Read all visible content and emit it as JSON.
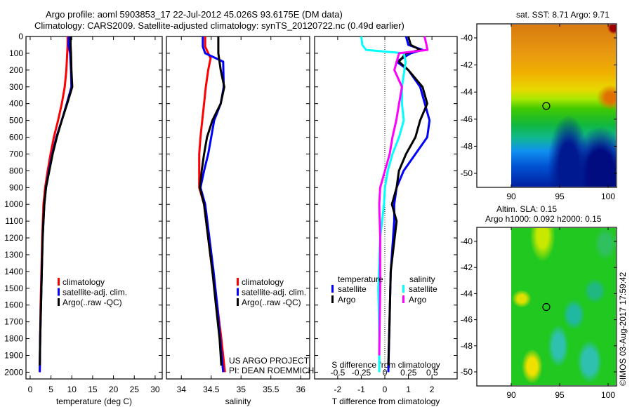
{
  "header": {
    "title_line1": "Argo profile: aoml 5903853_17 22-Jul-2012 45.026S 93.6175E (DM data)",
    "title_line2": "Climatology: CARS2009. Satellite-adjusted climatology: synTS_20120722.nc (0.49d earlier)"
  },
  "annotation": {
    "line1": "US ARGO PROJECT",
    "line2": "PI: DEAN ROEMMICH"
  },
  "copyright": "©IMOS 03-Aug-2017 17:59:42",
  "colors": {
    "climatology": "#ff0000",
    "satellite": "#0000ff",
    "argo": "#000000",
    "sal_satellite": "#00ffff",
    "sal_argo": "#ff00ff"
  },
  "chart_data": [
    {
      "type": "line",
      "title": "",
      "xlabel": "temperature (deg C)",
      "ylabel": "",
      "xlim": [
        -1,
        31.7
      ],
      "ylim": [
        2040,
        0
      ],
      "xticks": [
        "0",
        "5",
        "10",
        "15",
        "20",
        "25",
        "30"
      ],
      "yticks": [
        "0",
        "100",
        "200",
        "300",
        "400",
        "500",
        "600",
        "700",
        "800",
        "900",
        "1000",
        "1100",
        "1200",
        "1300",
        "1400",
        "1500",
        "1600",
        "1700",
        "1800",
        "1900",
        "2000"
      ],
      "legend": [
        "climatology",
        "satellite-adj. clim.",
        "Argo(..raw -QC)"
      ],
      "series": [
        {
          "name": "climatology",
          "color": "#ff0000",
          "depth": [
            0,
            50,
            100,
            200,
            300,
            400,
            500,
            600,
            700,
            800,
            900,
            1000,
            1200,
            1400,
            1600,
            1800,
            2000
          ],
          "values": [
            9.0,
            9.0,
            8.9,
            8.7,
            8.3,
            7.6,
            6.7,
            5.7,
            4.9,
            4.2,
            3.6,
            3.2,
            2.9,
            2.7,
            2.5,
            2.4,
            2.3
          ]
        },
        {
          "name": "satellite-adj. clim.",
          "color": "#0000ff",
          "depth": [
            0,
            50,
            100,
            200,
            300,
            400,
            500,
            600,
            700,
            800,
            900,
            1000,
            1200,
            1400,
            1600,
            1800,
            2000
          ],
          "values": [
            9.3,
            9.2,
            9.6,
            9.8,
            9.9,
            8.8,
            7.6,
            6.3,
            5.3,
            4.5,
            3.8,
            3.4,
            3.0,
            2.8,
            2.6,
            2.4,
            2.3
          ]
        },
        {
          "name": "Argo(..raw -QC)",
          "color": "#000000",
          "depth": [
            0,
            50,
            100,
            200,
            300,
            400,
            500,
            600,
            700,
            800,
            900,
            1000,
            1200,
            1400,
            1600,
            1800,
            1960
          ],
          "values": [
            9.7,
            9.7,
            9.8,
            9.9,
            10.1,
            8.9,
            7.6,
            6.4,
            5.4,
            4.6,
            3.8,
            3.4,
            3.0,
            2.8,
            2.6,
            2.4,
            2.3
          ]
        }
      ]
    },
    {
      "type": "line",
      "xlabel": "salinity",
      "xlim": [
        33.75,
        36.15
      ],
      "ylim": [
        2040,
        0
      ],
      "xticks": [
        "34",
        "34.5",
        "35",
        "35.5",
        "36"
      ],
      "legend": [
        "climatology",
        "satellite-adj. clim.",
        "Argo(..raw -QC)"
      ],
      "series": [
        {
          "name": "climatology",
          "color": "#ff0000",
          "depth": [
            0,
            60,
            130,
            200,
            300,
            400,
            500,
            600,
            700,
            800,
            900,
            1000,
            1200,
            1400,
            1600,
            1800,
            2000
          ],
          "values": [
            34.4,
            34.4,
            34.49,
            34.45,
            34.41,
            34.38,
            34.35,
            34.32,
            34.3,
            34.3,
            34.3,
            34.38,
            34.45,
            34.52,
            34.6,
            34.67,
            34.73
          ]
        },
        {
          "name": "satellite-adj. clim.",
          "color": "#0000ff",
          "depth": [
            0,
            60,
            100,
            150,
            300,
            400,
            500,
            600,
            700,
            800,
            900,
            1000,
            1200,
            1400,
            1600,
            1800,
            2000
          ],
          "values": [
            34.36,
            34.36,
            34.4,
            34.7,
            34.71,
            34.66,
            34.55,
            34.5,
            34.45,
            34.38,
            34.32,
            34.4,
            34.47,
            34.54,
            34.6,
            34.65,
            34.7
          ]
        },
        {
          "name": "Argo(..raw -QC)",
          "color": "#000000",
          "depth": [
            0,
            100,
            200,
            300,
            400,
            500,
            600,
            700,
            800,
            900,
            1000,
            1200,
            1400,
            1600,
            1800,
            1960
          ],
          "values": [
            34.62,
            34.62,
            34.66,
            34.72,
            34.66,
            34.52,
            34.43,
            34.38,
            34.34,
            34.31,
            34.38,
            34.45,
            34.52,
            34.58,
            34.64,
            34.67
          ]
        }
      ]
    },
    {
      "type": "line",
      "xlabel": "T difference from climatology",
      "x2label": "S difference from climatology",
      "xlim": [
        -2.98,
        3.07
      ],
      "ylim": [
        2040,
        0
      ],
      "xticks": [
        "-2",
        "-1",
        "0",
        "1",
        "2"
      ],
      "x2ticks": [
        "-0.5",
        "-0.25",
        "0",
        "0.25",
        "0.5"
      ],
      "legend_headers": [
        "temperature",
        "salinity"
      ],
      "legend": [
        "satellite",
        "Argo",
        "satellite",
        "Argo"
      ],
      "series": [
        {
          "name": "temperature satellite",
          "var": "T",
          "color": "#0000ff",
          "depth": [
            0,
            50,
            80,
            100,
            150,
            200,
            300,
            400,
            500,
            600,
            700,
            800,
            900,
            1000,
            1100,
            1400,
            1700,
            2000
          ],
          "values": [
            0.9,
            1.0,
            1.6,
            1.1,
            0.5,
            1.0,
            1.5,
            1.7,
            1.9,
            1.8,
            1.3,
            0.8,
            0.5,
            0.4,
            0.4,
            0.25,
            0.2,
            0.15
          ]
        },
        {
          "name": "temperature Argo",
          "var": "T",
          "color": "#000000",
          "depth": [
            0,
            50,
            80,
            100,
            150,
            200,
            300,
            400,
            500,
            600,
            700,
            800,
            900,
            1000,
            1100,
            1400,
            1700,
            1960
          ],
          "values": [
            1.0,
            1.1,
            1.5,
            0.9,
            0.6,
            1.0,
            1.6,
            1.8,
            1.5,
            1.3,
            0.9,
            0.6,
            0.5,
            0.3,
            0.5,
            0.25,
            0.2,
            0.15
          ]
        },
        {
          "name": "salinity satellite",
          "var": "S",
          "color": "#00ffff",
          "depth": [
            0,
            50,
            80,
            100,
            150,
            300,
            400,
            500,
            600,
            700,
            800,
            900,
            1000,
            1200,
            1500,
            1800,
            2000
          ],
          "values": [
            -0.25,
            -0.24,
            -0.2,
            0.2,
            0.22,
            0.18,
            0.18,
            0.2,
            0.15,
            0.08,
            0.03,
            0.0,
            -0.01,
            -0.05,
            -0.07,
            -0.06,
            -0.06
          ]
        },
        {
          "name": "salinity Argo",
          "var": "S",
          "color": "#ff00ff",
          "depth": [
            0,
            50,
            80,
            100,
            200,
            300,
            400,
            500,
            600,
            700,
            800,
            900,
            1000,
            1200,
            1500,
            1900
          ],
          "values": [
            0.42,
            0.44,
            0.45,
            0.15,
            0.1,
            0.18,
            0.15,
            0.12,
            0.08,
            0.05,
            0.0,
            -0.05,
            -0.06,
            -0.05,
            -0.05,
            -0.06
          ]
        }
      ],
      "slim": [
        -0.745,
        0.765
      ]
    }
  ],
  "maps": [
    {
      "title": "sat. SST: 8.71  Argo: 9.71",
      "xticks": [
        "90",
        "95",
        "100"
      ],
      "yticks": [
        "-40",
        "-42",
        "-44",
        "-46",
        "-48",
        "-50"
      ],
      "marker": {
        "lon": 93.6175,
        "lat": -45.026
      }
    },
    {
      "title_line1": "Altim. SLA: 0.15",
      "title_line2": "Argo h1000: 0.092 h2000: 0.15",
      "xticks": [
        "90",
        "95",
        "100"
      ],
      "yticks": [
        "-40",
        "-42",
        "-44",
        "-46",
        "-48",
        "-50"
      ],
      "marker": {
        "lon": 93.6175,
        "lat": -45.026
      }
    }
  ]
}
